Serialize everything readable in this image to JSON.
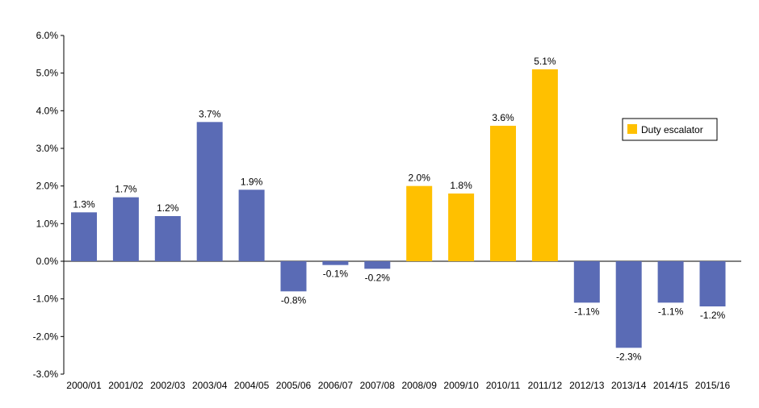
{
  "chart_data": {
    "type": "bar",
    "title": "",
    "xlabel": "",
    "ylabel": "",
    "ylim": [
      -3,
      6
    ],
    "yticks": [
      "-3.0%",
      "-2.0%",
      "-1.0%",
      "0.0%",
      "1.0%",
      "2.0%",
      "3.0%",
      "4.0%",
      "5.0%",
      "6.0%"
    ],
    "categories": [
      "2000/01",
      "2001/02",
      "2002/03",
      "2003/04",
      "2004/05",
      "2005/06",
      "2006/07",
      "2007/08",
      "2008/09",
      "2009/10",
      "2010/11",
      "2011/12",
      "2012/13",
      "2013/14",
      "2014/15",
      "2015/16"
    ],
    "values": [
      1.3,
      1.7,
      1.2,
      3.7,
      1.9,
      -0.8,
      -0.1,
      -0.2,
      2.0,
      1.8,
      3.6,
      5.1,
      -1.1,
      -2.3,
      -1.1,
      -1.2
    ],
    "data_labels": [
      "1.3%",
      "1.7%",
      "1.2%",
      "3.7%",
      "1.9%",
      "-0.8%",
      "-0.1%",
      "-0.2%",
      "2.0%",
      "1.8%",
      "3.6%",
      "5.1%",
      "-1.1%",
      "-2.3%",
      "-1.1%",
      "-1.2%"
    ],
    "duty_escalator": [
      false,
      false,
      false,
      false,
      false,
      false,
      false,
      false,
      true,
      true,
      true,
      true,
      false,
      false,
      false,
      false
    ],
    "legend": {
      "entries": [
        "Duty escalator"
      ],
      "placement": "right"
    },
    "colors": {
      "default": "#5a6bb5",
      "duty_escalator": "#ffc000"
    },
    "grid": false
  }
}
